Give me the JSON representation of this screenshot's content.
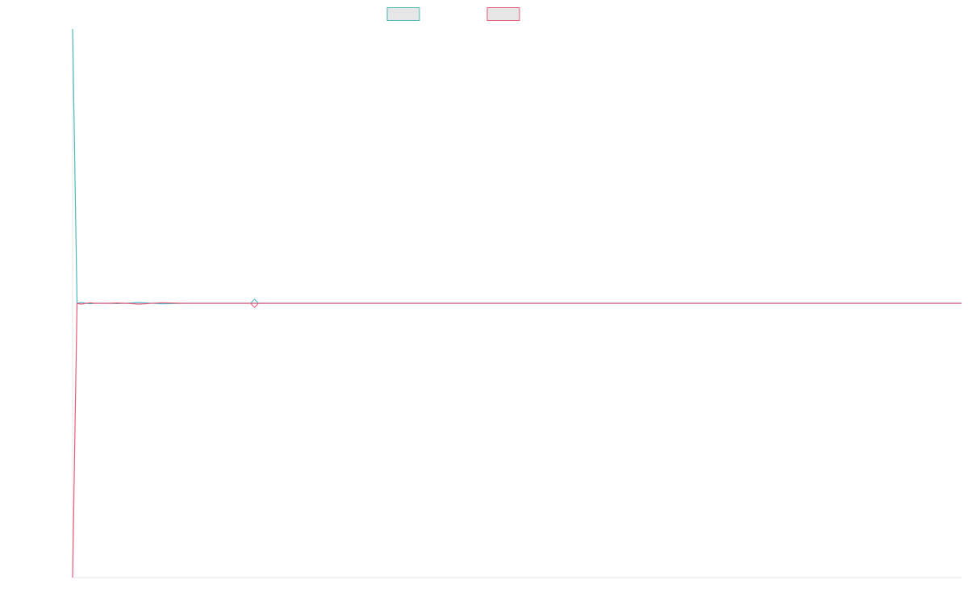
{
  "chart_data": {
    "type": "line",
    "title": "",
    "xlabel": "",
    "ylabel": "",
    "grid": false,
    "legend_position": "top-center",
    "ylim": [
      -1,
      1
    ],
    "series": [
      {
        "name": "",
        "color": "#4bb8c0",
        "x": [
          0,
          1,
          2,
          3,
          4,
          5,
          6,
          7,
          8,
          10,
          12,
          15,
          20,
          25,
          30,
          35,
          40,
          45,
          50,
          60,
          80,
          100,
          150,
          200
        ],
        "values": [
          1.0,
          0.0,
          0.003,
          0.0,
          -0.002,
          0.0,
          0.0,
          0.0,
          0.0,
          -0.001,
          0.0,
          0.003,
          -0.002,
          0.0,
          0.0,
          0.0,
          0.0,
          0.0,
          0.0,
          0.0,
          0.0,
          0.0,
          0.0,
          0.0
        ]
      },
      {
        "name": "",
        "color": "#e85a78",
        "x": [
          0,
          1,
          2,
          3,
          4,
          5,
          6,
          7,
          8,
          10,
          12,
          15,
          20,
          25,
          30,
          35,
          40,
          45,
          50,
          60,
          80,
          100,
          150,
          200
        ],
        "values": [
          -1.0,
          0.0,
          -0.003,
          0.0,
          0.002,
          0.0,
          0.0,
          0.0,
          0.0,
          0.001,
          0.0,
          -0.003,
          0.002,
          0.0,
          0.0,
          0.0,
          0.0,
          0.0,
          0.0,
          0.0,
          0.0,
          0.0,
          0.0,
          0.0
        ]
      }
    ],
    "markers": [
      {
        "series": 0,
        "x": 41,
        "y": 0.0
      }
    ]
  }
}
